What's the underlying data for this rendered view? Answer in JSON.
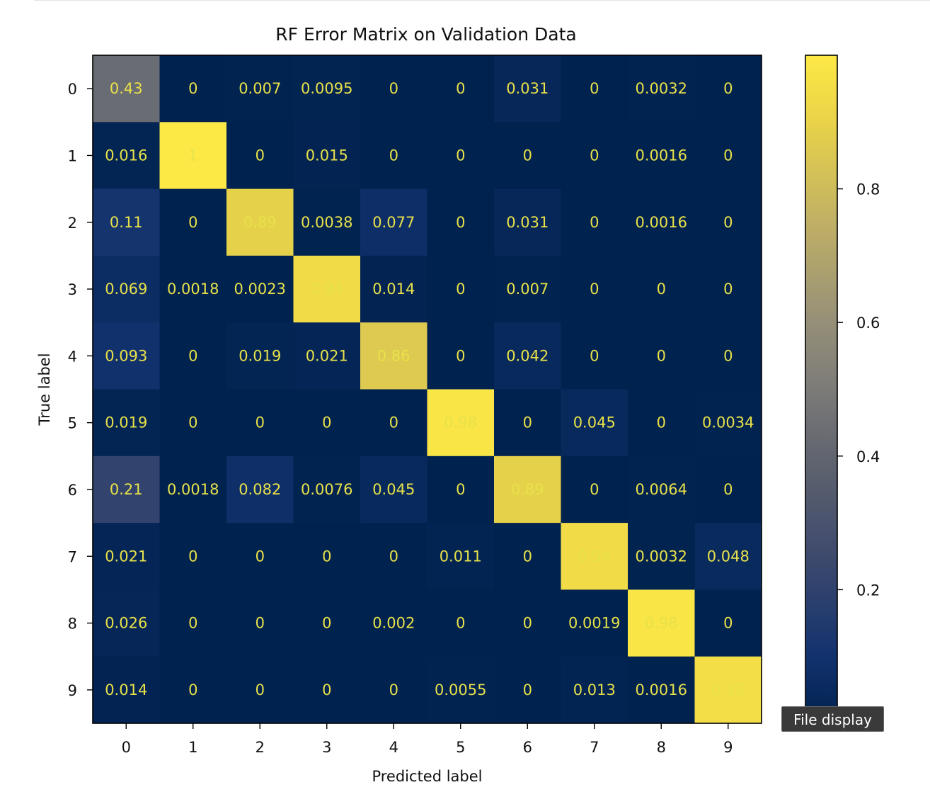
{
  "chart_data": {
    "type": "heatmap",
    "title": "RF Error Matrix on Validation Data",
    "xlabel": "Predicted label",
    "ylabel": "True label",
    "x_ticks": [
      "0",
      "1",
      "2",
      "3",
      "4",
      "5",
      "6",
      "7",
      "8",
      "9"
    ],
    "y_ticks": [
      "0",
      "1",
      "2",
      "3",
      "4",
      "5",
      "6",
      "7",
      "8",
      "9"
    ],
    "cell_labels": [
      [
        "0.43",
        "0",
        "0.007",
        "0.0095",
        "0",
        "0",
        "0.031",
        "0",
        "0.0032",
        "0"
      ],
      [
        "0.016",
        "1",
        "0",
        "0.015",
        "0",
        "0",
        "0",
        "0",
        "0.0016",
        "0"
      ],
      [
        "0.11",
        "0",
        "0.89",
        "0.0038",
        "0.077",
        "0",
        "0.031",
        "0",
        "0.0016",
        "0"
      ],
      [
        "0.069",
        "0.0018",
        "0.0023",
        "0.94",
        "0.014",
        "0",
        "0.007",
        "0",
        "0",
        "0"
      ],
      [
        "0.093",
        "0",
        "0.019",
        "0.021",
        "0.86",
        "0",
        "0.042",
        "0",
        "0",
        "0"
      ],
      [
        "0.019",
        "0",
        "0",
        "0",
        "0",
        "0.98",
        "0",
        "0.045",
        "0",
        "0.0034"
      ],
      [
        "0.21",
        "0.0018",
        "0.082",
        "0.0076",
        "0.045",
        "0",
        "0.89",
        "0",
        "0.0064",
        "0"
      ],
      [
        "0.021",
        "0",
        "0",
        "0",
        "0",
        "0.011",
        "0",
        "0.94",
        "0.0032",
        "0.048"
      ],
      [
        "0.026",
        "0",
        "0",
        "0",
        "0.002",
        "0",
        "0",
        "0.0019",
        "0.98",
        "0"
      ],
      [
        "0.014",
        "0",
        "0",
        "0",
        "0",
        "0.0055",
        "0",
        "0.013",
        "0.0016",
        "0.95"
      ]
    ],
    "values": [
      [
        0.43,
        0,
        0.007,
        0.0095,
        0,
        0,
        0.031,
        0,
        0.0032,
        0
      ],
      [
        0.016,
        1,
        0,
        0.015,
        0,
        0,
        0,
        0,
        0.0016,
        0
      ],
      [
        0.11,
        0,
        0.89,
        0.0038,
        0.077,
        0,
        0.031,
        0,
        0.0016,
        0
      ],
      [
        0.069,
        0.0018,
        0.0023,
        0.94,
        0.014,
        0,
        0.007,
        0,
        0,
        0
      ],
      [
        0.093,
        0,
        0.019,
        0.021,
        0.86,
        0,
        0.042,
        0,
        0,
        0
      ],
      [
        0.019,
        0,
        0,
        0,
        0,
        0.98,
        0,
        0.045,
        0,
        0.0034
      ],
      [
        0.21,
        0.0018,
        0.082,
        0.0076,
        0.045,
        0,
        0.89,
        0,
        0.0064,
        0
      ],
      [
        0.021,
        0,
        0,
        0,
        0,
        0.011,
        0,
        0.94,
        0.0032,
        0.048
      ],
      [
        0.026,
        0,
        0,
        0,
        0.002,
        0,
        0,
        0.0019,
        0.98,
        0
      ],
      [
        0.014,
        0,
        0,
        0,
        0,
        0.0055,
        0,
        0.013,
        0.0016,
        0.95
      ]
    ],
    "colormap": "cividis",
    "colorbar": {
      "range": [
        0,
        1
      ],
      "ticks": [
        0.2,
        0.4,
        0.6,
        0.8
      ],
      "tick_labels": [
        "0.2",
        "0.4",
        "0.6",
        "0.8"
      ]
    },
    "grid": false,
    "annotation_color": "#e8e14a"
  },
  "tooltip": {
    "text": "File display"
  }
}
